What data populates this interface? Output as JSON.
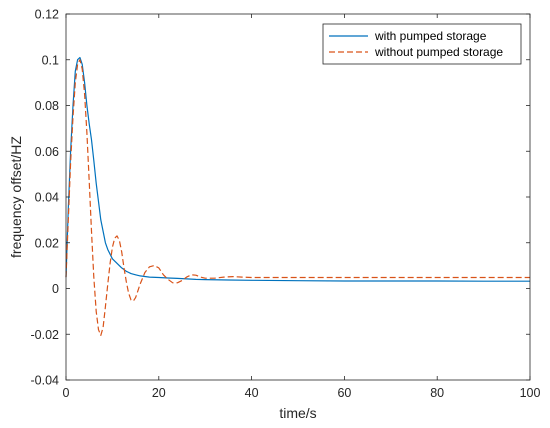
{
  "chart_data": {
    "type": "line",
    "title": "",
    "xlabel": "time/s",
    "ylabel": "frequency offset/HZ",
    "xlim": [
      0,
      100
    ],
    "ylim": [
      -0.04,
      0.12
    ],
    "xticks": [
      0,
      20,
      40,
      60,
      80,
      100
    ],
    "xtick_labels": [
      "0",
      "20",
      "40",
      "60",
      "80",
      "100"
    ],
    "yticks": [
      -0.04,
      -0.02,
      0,
      0.02,
      0.04,
      0.06,
      0.08,
      0.1,
      0.12
    ],
    "ytick_labels": [
      "-0.04",
      "-0.02",
      "0",
      "0.02",
      "0.04",
      "0.06",
      "0.08",
      "0.1",
      "0.12"
    ],
    "grid": false,
    "legend_position": "top-right",
    "series": [
      {
        "name": "with pumped storage",
        "color": "#0072BD",
        "style": "solid",
        "x": [
          0,
          0.5,
          1,
          1.5,
          2,
          2.5,
          3,
          3.5,
          4,
          4.5,
          5,
          5.5,
          6,
          6.5,
          7,
          7.5,
          8,
          8.5,
          9,
          9.5,
          10,
          11,
          12,
          13,
          14,
          15,
          16,
          18,
          20,
          22,
          24,
          26,
          28,
          30,
          35,
          40,
          50,
          60,
          70,
          80,
          90,
          100
        ],
        "y": [
          0.005,
          0.035,
          0.06,
          0.08,
          0.095,
          0.1,
          0.101,
          0.098,
          0.09,
          0.08,
          0.072,
          0.065,
          0.056,
          0.046,
          0.038,
          0.03,
          0.025,
          0.02,
          0.017,
          0.015,
          0.013,
          0.011,
          0.009,
          0.0075,
          0.0065,
          0.006,
          0.0055,
          0.005,
          0.0048,
          0.0046,
          0.0044,
          0.0042,
          0.004,
          0.0039,
          0.0037,
          0.0036,
          0.0034,
          0.0033,
          0.0033,
          0.0033,
          0.0032,
          0.0032
        ]
      },
      {
        "name": "without pumped storage",
        "color": "#D95319",
        "style": "dashed",
        "x": [
          0,
          0.5,
          1,
          1.5,
          2,
          2.5,
          3,
          3.5,
          4,
          4.5,
          5,
          5.5,
          6,
          6.5,
          7,
          7.5,
          8,
          8.5,
          9,
          9.5,
          10,
          10.5,
          11,
          11.5,
          12,
          12.5,
          13,
          13.5,
          14,
          14.5,
          15,
          15.5,
          16,
          17,
          18,
          19,
          20,
          21,
          22,
          23,
          24,
          25,
          26,
          27,
          28,
          29,
          30,
          32,
          34,
          36,
          38,
          40,
          50,
          60,
          70,
          80,
          90,
          100
        ],
        "y": [
          0.005,
          0.03,
          0.055,
          0.075,
          0.09,
          0.098,
          0.1,
          0.096,
          0.085,
          0.068,
          0.047,
          0.025,
          0.005,
          -0.01,
          -0.018,
          -0.0205,
          -0.017,
          -0.008,
          0.002,
          0.011,
          0.018,
          0.022,
          0.023,
          0.021,
          0.016,
          0.009,
          0.003,
          -0.002,
          -0.005,
          -0.0055,
          -0.004,
          -0.001,
          0.002,
          0.007,
          0.0095,
          0.01,
          0.009,
          0.006,
          0.004,
          0.0025,
          0.0025,
          0.0035,
          0.005,
          0.006,
          0.0058,
          0.005,
          0.0045,
          0.0045,
          0.005,
          0.0052,
          0.005,
          0.0048,
          0.0048,
          0.0048,
          0.0048,
          0.0048,
          0.0048,
          0.0048
        ]
      }
    ]
  }
}
